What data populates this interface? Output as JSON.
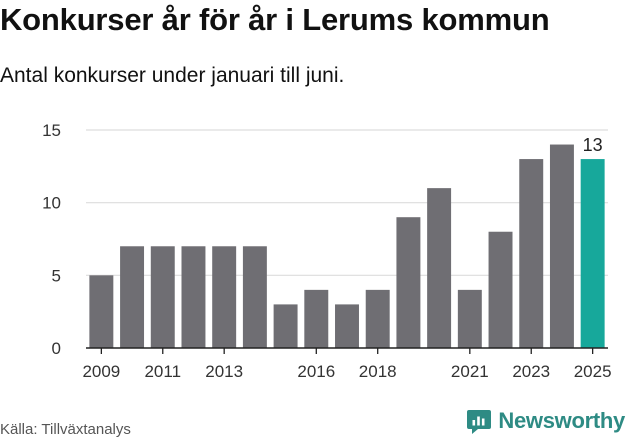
{
  "title": "Konkurser år för år i Lerums kommun",
  "subtitle": "Antal konkurser under januari till juni.",
  "source": "Källa: Tillväxtanalys",
  "brand": "Newsworthy",
  "colors": {
    "bar": "#6f6e73",
    "highlight": "#17a89b",
    "grid": "#dddddd",
    "axis": "#222222",
    "brand": "#2e8b84"
  },
  "chart_data": {
    "type": "bar",
    "categories": [
      "2009",
      "2010",
      "2011",
      "2012",
      "2013",
      "2014",
      "2015",
      "2016",
      "2017",
      "2018",
      "2019",
      "2020",
      "2021",
      "2022",
      "2023",
      "2024",
      "2025"
    ],
    "values": [
      5,
      7,
      7,
      7,
      7,
      7,
      3,
      4,
      3,
      4,
      9,
      11,
      4,
      8,
      13,
      14,
      13
    ],
    "tick_labels": [
      "2009",
      "2011",
      "2013",
      "2016",
      "2018",
      "2021",
      "2023",
      "2025"
    ],
    "highlight_category": "2025",
    "data_labels": [
      {
        "category": "2025",
        "text": "13"
      }
    ],
    "ylim": [
      0,
      15
    ],
    "yticks": [
      0,
      5,
      10,
      15
    ],
    "grid": true
  }
}
